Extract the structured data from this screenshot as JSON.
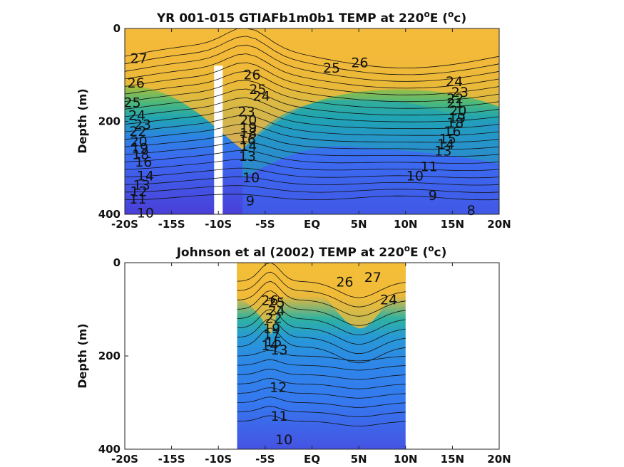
{
  "chart_data": [
    {
      "type": "heatmap",
      "title_main": "YR 001-015 GTIAFb1m0b1 TEMP at 220",
      "title_sup_o": "o",
      "title_e": "E (",
      "title_sup_o2": "o",
      "title_end": "c)",
      "ylabel": "Depth (m)",
      "xlim": [
        -20,
        20
      ],
      "ylim": [
        0,
        400
      ],
      "xticks": [
        "-20S",
        "-15S",
        "-10S",
        "-5S",
        "EQ",
        "5N",
        "10N",
        "15N",
        "20N"
      ],
      "yticks": [
        "0",
        "200",
        "400"
      ],
      "data_x_range": [
        -20,
        20
      ],
      "gap_x": -10,
      "gap_depth_from": 80,
      "contour_labels": [
        {
          "text": "27",
          "x": -18.5,
          "y": 65
        },
        {
          "text": "26",
          "x": -18.8,
          "y": 118
        },
        {
          "text": "25",
          "x": -19.2,
          "y": 160
        },
        {
          "text": "24",
          "x": -18.7,
          "y": 188
        },
        {
          "text": "23",
          "x": -18.1,
          "y": 208
        },
        {
          "text": "22",
          "x": -18.6,
          "y": 222
        },
        {
          "text": "20",
          "x": -18.5,
          "y": 244
        },
        {
          "text": "19",
          "x": -18.4,
          "y": 258
        },
        {
          "text": "18",
          "x": -18.3,
          "y": 272
        },
        {
          "text": "16",
          "x": -18.0,
          "y": 288
        },
        {
          "text": "14",
          "x": -17.8,
          "y": 318
        },
        {
          "text": "13",
          "x": -18.2,
          "y": 338
        },
        {
          "text": "12",
          "x": -18.5,
          "y": 352
        },
        {
          "text": "11",
          "x": -18.6,
          "y": 368
        },
        {
          "text": "10",
          "x": -17.8,
          "y": 398
        },
        {
          "text": "26",
          "x": -6.4,
          "y": 100
        },
        {
          "text": "25",
          "x": -5.8,
          "y": 132
        },
        {
          "text": "24",
          "x": -5.4,
          "y": 146
        },
        {
          "text": "23",
          "x": -7.0,
          "y": 180
        },
        {
          "text": "20",
          "x": -6.8,
          "y": 198
        },
        {
          "text": "19",
          "x": -6.8,
          "y": 214
        },
        {
          "text": "18",
          "x": -6.8,
          "y": 226
        },
        {
          "text": "16",
          "x": -6.9,
          "y": 240
        },
        {
          "text": "14",
          "x": -6.8,
          "y": 254
        },
        {
          "text": "13",
          "x": -6.9,
          "y": 276
        },
        {
          "text": "10",
          "x": -6.5,
          "y": 322
        },
        {
          "text": "9",
          "x": -6.6,
          "y": 372
        },
        {
          "text": "25",
          "x": 2.1,
          "y": 86
        },
        {
          "text": "26",
          "x": 5.1,
          "y": 74
        },
        {
          "text": "9",
          "x": 12.9,
          "y": 360
        },
        {
          "text": "8",
          "x": 17.0,
          "y": 392
        },
        {
          "text": "24",
          "x": 15.2,
          "y": 115
        },
        {
          "text": "23",
          "x": 15.8,
          "y": 138
        },
        {
          "text": "22",
          "x": 15.3,
          "y": 152
        },
        {
          "text": "21",
          "x": 15.3,
          "y": 162
        },
        {
          "text": "20",
          "x": 15.6,
          "y": 178
        },
        {
          "text": "19",
          "x": 15.5,
          "y": 194
        },
        {
          "text": "18",
          "x": 15.3,
          "y": 204
        },
        {
          "text": "16",
          "x": 15.0,
          "y": 222
        },
        {
          "text": "15",
          "x": 14.5,
          "y": 238
        },
        {
          "text": "14",
          "x": 14.3,
          "y": 250
        },
        {
          "text": "13",
          "x": 14.0,
          "y": 264
        },
        {
          "text": "11",
          "x": 12.5,
          "y": 298
        },
        {
          "text": "10",
          "x": 11.0,
          "y": 318
        }
      ]
    },
    {
      "type": "heatmap",
      "title_main": "Johnson et al (2002) TEMP at 220",
      "title_sup_o": "o",
      "title_e": "E (",
      "title_sup_o2": "o",
      "title_end": "c)",
      "ylabel": "Depth (m)",
      "xlim": [
        -20,
        20
      ],
      "ylim": [
        0,
        400
      ],
      "xticks": [
        "-20S",
        "-15S",
        "-10S",
        "-5S",
        "EQ",
        "5N",
        "10N",
        "15N",
        "20N"
      ],
      "yticks": [
        "0",
        "200",
        "400"
      ],
      "data_x_range": [
        -8,
        10
      ],
      "contour_labels": [
        {
          "text": "26",
          "x": -4.5,
          "y": 82
        },
        {
          "text": "25",
          "x": -3.8,
          "y": 86
        },
        {
          "text": "24",
          "x": -3.8,
          "y": 104
        },
        {
          "text": "22",
          "x": -4.1,
          "y": 120
        },
        {
          "text": "19",
          "x": -4.3,
          "y": 142
        },
        {
          "text": "17",
          "x": -4.3,
          "y": 156
        },
        {
          "text": "15",
          "x": -4.1,
          "y": 170
        },
        {
          "text": "14",
          "x": -4.5,
          "y": 178
        },
        {
          "text": "13",
          "x": -3.5,
          "y": 188
        },
        {
          "text": "12",
          "x": -3.6,
          "y": 268
        },
        {
          "text": "11",
          "x": -3.5,
          "y": 330
        },
        {
          "text": "10",
          "x": -3.0,
          "y": 380
        },
        {
          "text": "26",
          "x": 3.5,
          "y": 42
        },
        {
          "text": "27",
          "x": 6.5,
          "y": 32
        },
        {
          "text": "24",
          "x": 8.2,
          "y": 80
        }
      ]
    }
  ]
}
